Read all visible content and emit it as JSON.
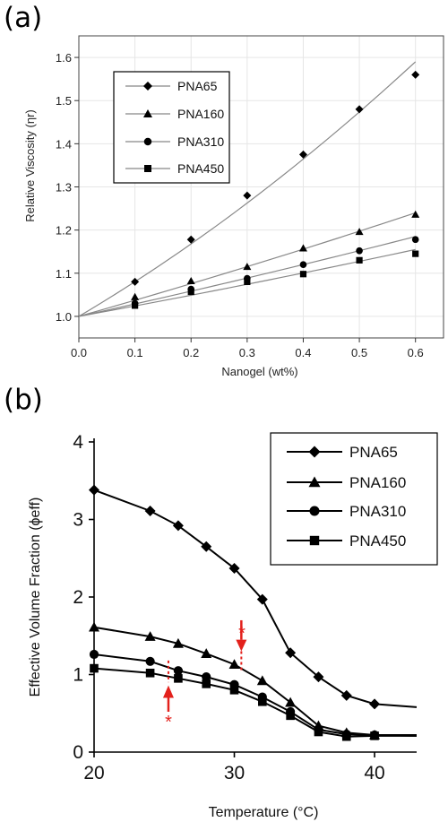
{
  "chart_data": [
    {
      "type": "scatter",
      "panel_label": "(a)",
      "xlabel": "Nanogel (wt%)",
      "ylabel": "Relative Viscosity (ηr)",
      "xlim": [
        0.0,
        0.65
      ],
      "ylim": [
        0.95,
        1.65
      ],
      "x_ticks": [
        "0.0",
        "0.1",
        "0.2",
        "0.3",
        "0.4",
        "0.5",
        "0.6"
      ],
      "y_ticks": [
        "1.0",
        "1.1",
        "1.2",
        "1.3",
        "1.4",
        "1.5",
        "1.6"
      ],
      "x": [
        0.1,
        0.2,
        0.3,
        0.4,
        0.5,
        0.6
      ],
      "legend_position": "top-left",
      "series": [
        {
          "name": "PNA65",
          "marker": "diamond",
          "values": [
            1.08,
            1.178,
            1.28,
            1.375,
            1.48,
            1.56
          ],
          "fit_end": 1.59
        },
        {
          "name": "PNA160",
          "marker": "triangle",
          "values": [
            1.045,
            1.082,
            1.115,
            1.158,
            1.196,
            1.236
          ],
          "fit_end": 1.24
        },
        {
          "name": "PNA310",
          "marker": "circle",
          "values": [
            1.03,
            1.063,
            1.088,
            1.12,
            1.152,
            1.178
          ],
          "fit_end": 1.185
        },
        {
          "name": "PNA450",
          "marker": "square",
          "values": [
            1.025,
            1.057,
            1.08,
            1.098,
            1.13,
            1.145
          ],
          "fit_end": 1.155
        }
      ],
      "fit_lines_from": [
        0.0,
        1.0
      ],
      "colors": {
        "marker": "#000000",
        "fit": "#888888"
      }
    },
    {
      "type": "line",
      "panel_label": "(b)",
      "xlabel": "Temperature (°C)",
      "ylabel": "Effective Volume Fraction (ϕeff)",
      "xlim": [
        20,
        43
      ],
      "ylim": [
        0,
        4
      ],
      "x_ticks": [
        "20",
        "30",
        "40"
      ],
      "y_ticks": [
        "0",
        "1",
        "2",
        "3",
        "4"
      ],
      "legend_position": "top-right",
      "series": [
        {
          "name": "PNA65",
          "marker": "diamond",
          "x": [
            20,
            24,
            26,
            28,
            30,
            32,
            34,
            36,
            38,
            40,
            43
          ],
          "values": [
            3.38,
            3.11,
            2.92,
            2.65,
            2.37,
            1.97,
            1.28,
            0.97,
            0.73,
            0.62,
            0.58
          ]
        },
        {
          "name": "PNA160",
          "marker": "triangle",
          "x": [
            20,
            24,
            26,
            28,
            30,
            32,
            34,
            36,
            38,
            40,
            43
          ],
          "values": [
            1.61,
            1.49,
            1.4,
            1.27,
            1.13,
            0.92,
            0.64,
            0.34,
            0.25,
            0.22,
            0.22
          ]
        },
        {
          "name": "PNA310",
          "marker": "circle",
          "x": [
            20,
            24,
            26,
            28,
            30,
            32,
            34,
            36,
            38,
            40,
            43
          ],
          "values": [
            1.26,
            1.17,
            1.05,
            0.97,
            0.87,
            0.71,
            0.52,
            0.29,
            0.23,
            0.22,
            0.21
          ]
        },
        {
          "name": "PNA450",
          "marker": "square",
          "x": [
            20,
            24,
            26,
            28,
            30,
            32,
            34,
            36,
            38,
            40,
            43
          ],
          "values": [
            1.08,
            1.02,
            0.95,
            0.88,
            0.8,
            0.65,
            0.47,
            0.26,
            0.2,
            0.21,
            0.21
          ]
        }
      ],
      "annotations": [
        {
          "symbol": "*",
          "x": 30.5,
          "y_from": 1.5,
          "y_to": 1.05,
          "direction": "down",
          "color": "#e3211c"
        },
        {
          "symbol": "*",
          "x": 25.3,
          "y_from": 0.55,
          "y_to": 1.0,
          "direction": "up",
          "color": "#e3211c"
        }
      ]
    }
  ]
}
